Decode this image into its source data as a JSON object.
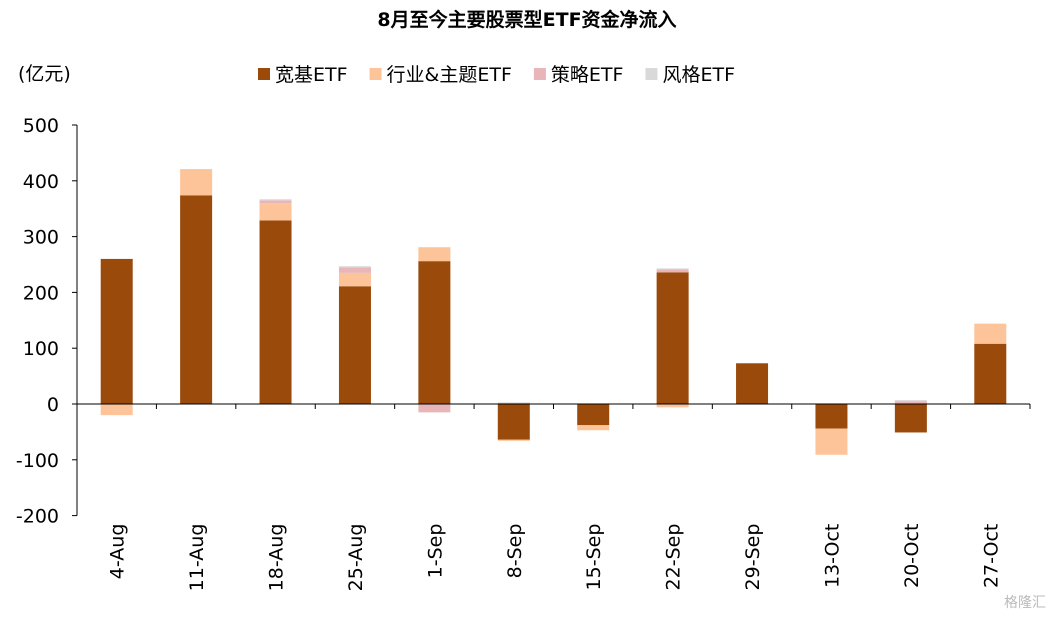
{
  "chart_data": {
    "type": "bar",
    "stacked": true,
    "title": "8月至今主要股票型ETF资金净流入",
    "unit_label": "(亿元)",
    "categories": [
      "4-Aug",
      "11-Aug",
      "18-Aug",
      "25-Aug",
      "1-Sep",
      "8-Sep",
      "15-Sep",
      "22-Sep",
      "29-Sep",
      "13-Oct",
      "20-Oct",
      "27-Oct"
    ],
    "series": [
      {
        "name": "宽基ETF",
        "color": "#9A4A0B",
        "values": [
          260,
          374,
          329,
          211,
          256,
          -64,
          -38,
          236,
          73,
          -44,
          -51,
          108
        ]
      },
      {
        "name": "行业&主题ETF",
        "color": "#FDC49A",
        "values": [
          -20,
          47,
          31,
          24,
          25,
          -2,
          -9,
          -6,
          0,
          -47,
          0,
          36
        ]
      },
      {
        "name": "策略ETF",
        "color": "#E8B6B8",
        "values": [
          0,
          0,
          5,
          10,
          -15,
          2,
          0,
          5,
          0,
          0,
          5,
          0
        ]
      },
      {
        "name": "风格ETF",
        "color": "#D9D9D9",
        "values": [
          0,
          0,
          2,
          2,
          0,
          1,
          0,
          2,
          0,
          0,
          2,
          0
        ]
      }
    ],
    "yticks": [
      "500",
      "400",
      "300",
      "200",
      "100",
      "0",
      "-100",
      "-200"
    ],
    "ylim": [
      -200,
      500
    ],
    "grid": false,
    "legend_position": "top"
  },
  "watermark": "格隆汇"
}
